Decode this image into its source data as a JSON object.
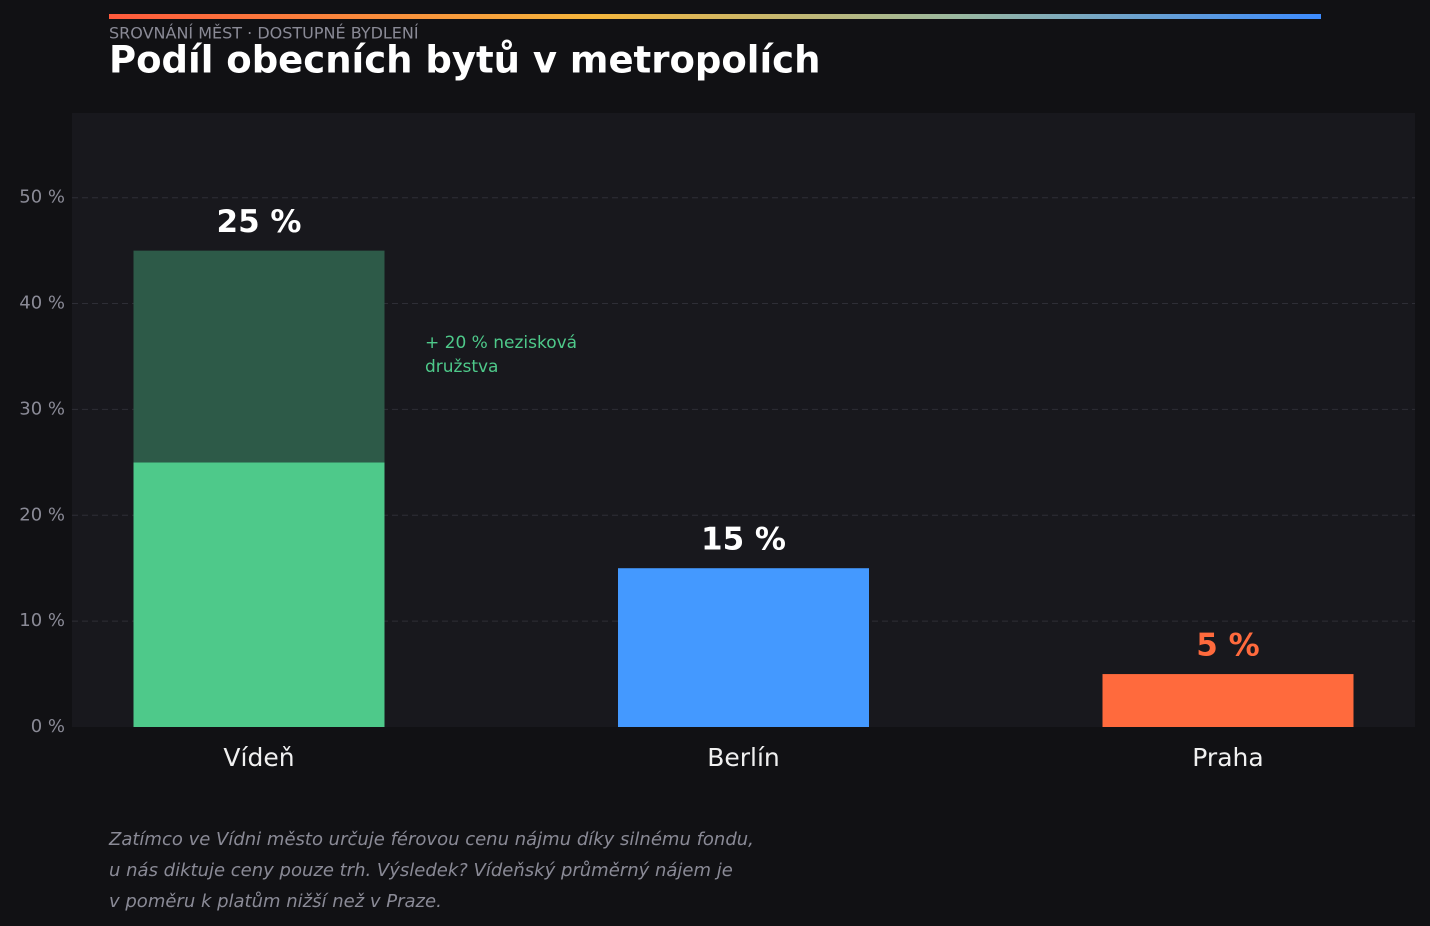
{
  "chart_data": {
    "type": "stacked_bar",
    "kicker": "SROVNÁNÍ MĚST · DOSTUPNÉ BYDLENÍ",
    "title": "Podíl obecních bytů v metropolích",
    "categories": [
      "Vídeň",
      "Berlín",
      "Praha"
    ],
    "series": [
      {
        "values": [
          25,
          15,
          5
        ],
        "colors": [
          "#4ec98a",
          "#4499ff",
          "#ff6a3d"
        ],
        "value_labels": [
          "25 %",
          "15 %",
          "5 %"
        ],
        "label_colors": [
          "#ffffff",
          "#ffffff",
          "#ff6a3d"
        ]
      },
      {
        "values": [
          20,
          null,
          null
        ],
        "color": "#2d5a48",
        "annotation": "+ 20 % nezisková družstva",
        "annotation_color": "#4ec98a"
      }
    ],
    "ylim": [
      0,
      58
    ],
    "yticks": [
      {
        "value": 0,
        "label": "0 %"
      },
      {
        "value": 10,
        "label": "10 %"
      },
      {
        "value": 20,
        "label": "20 %"
      },
      {
        "value": 30,
        "label": "30 %"
      },
      {
        "value": 40,
        "label": "40 %"
      },
      {
        "value": 50,
        "label": "50 %"
      }
    ],
    "grid": true,
    "footnote": [
      "Zatímco ve Vídni město určuje férovou cenu nájmu díky silnému fondu,",
      "u nás diktuje ceny pouze trh. Výsledek? Vídeňský průměrný nájem je",
      "v poměru k platům nižší než v Praze."
    ]
  }
}
